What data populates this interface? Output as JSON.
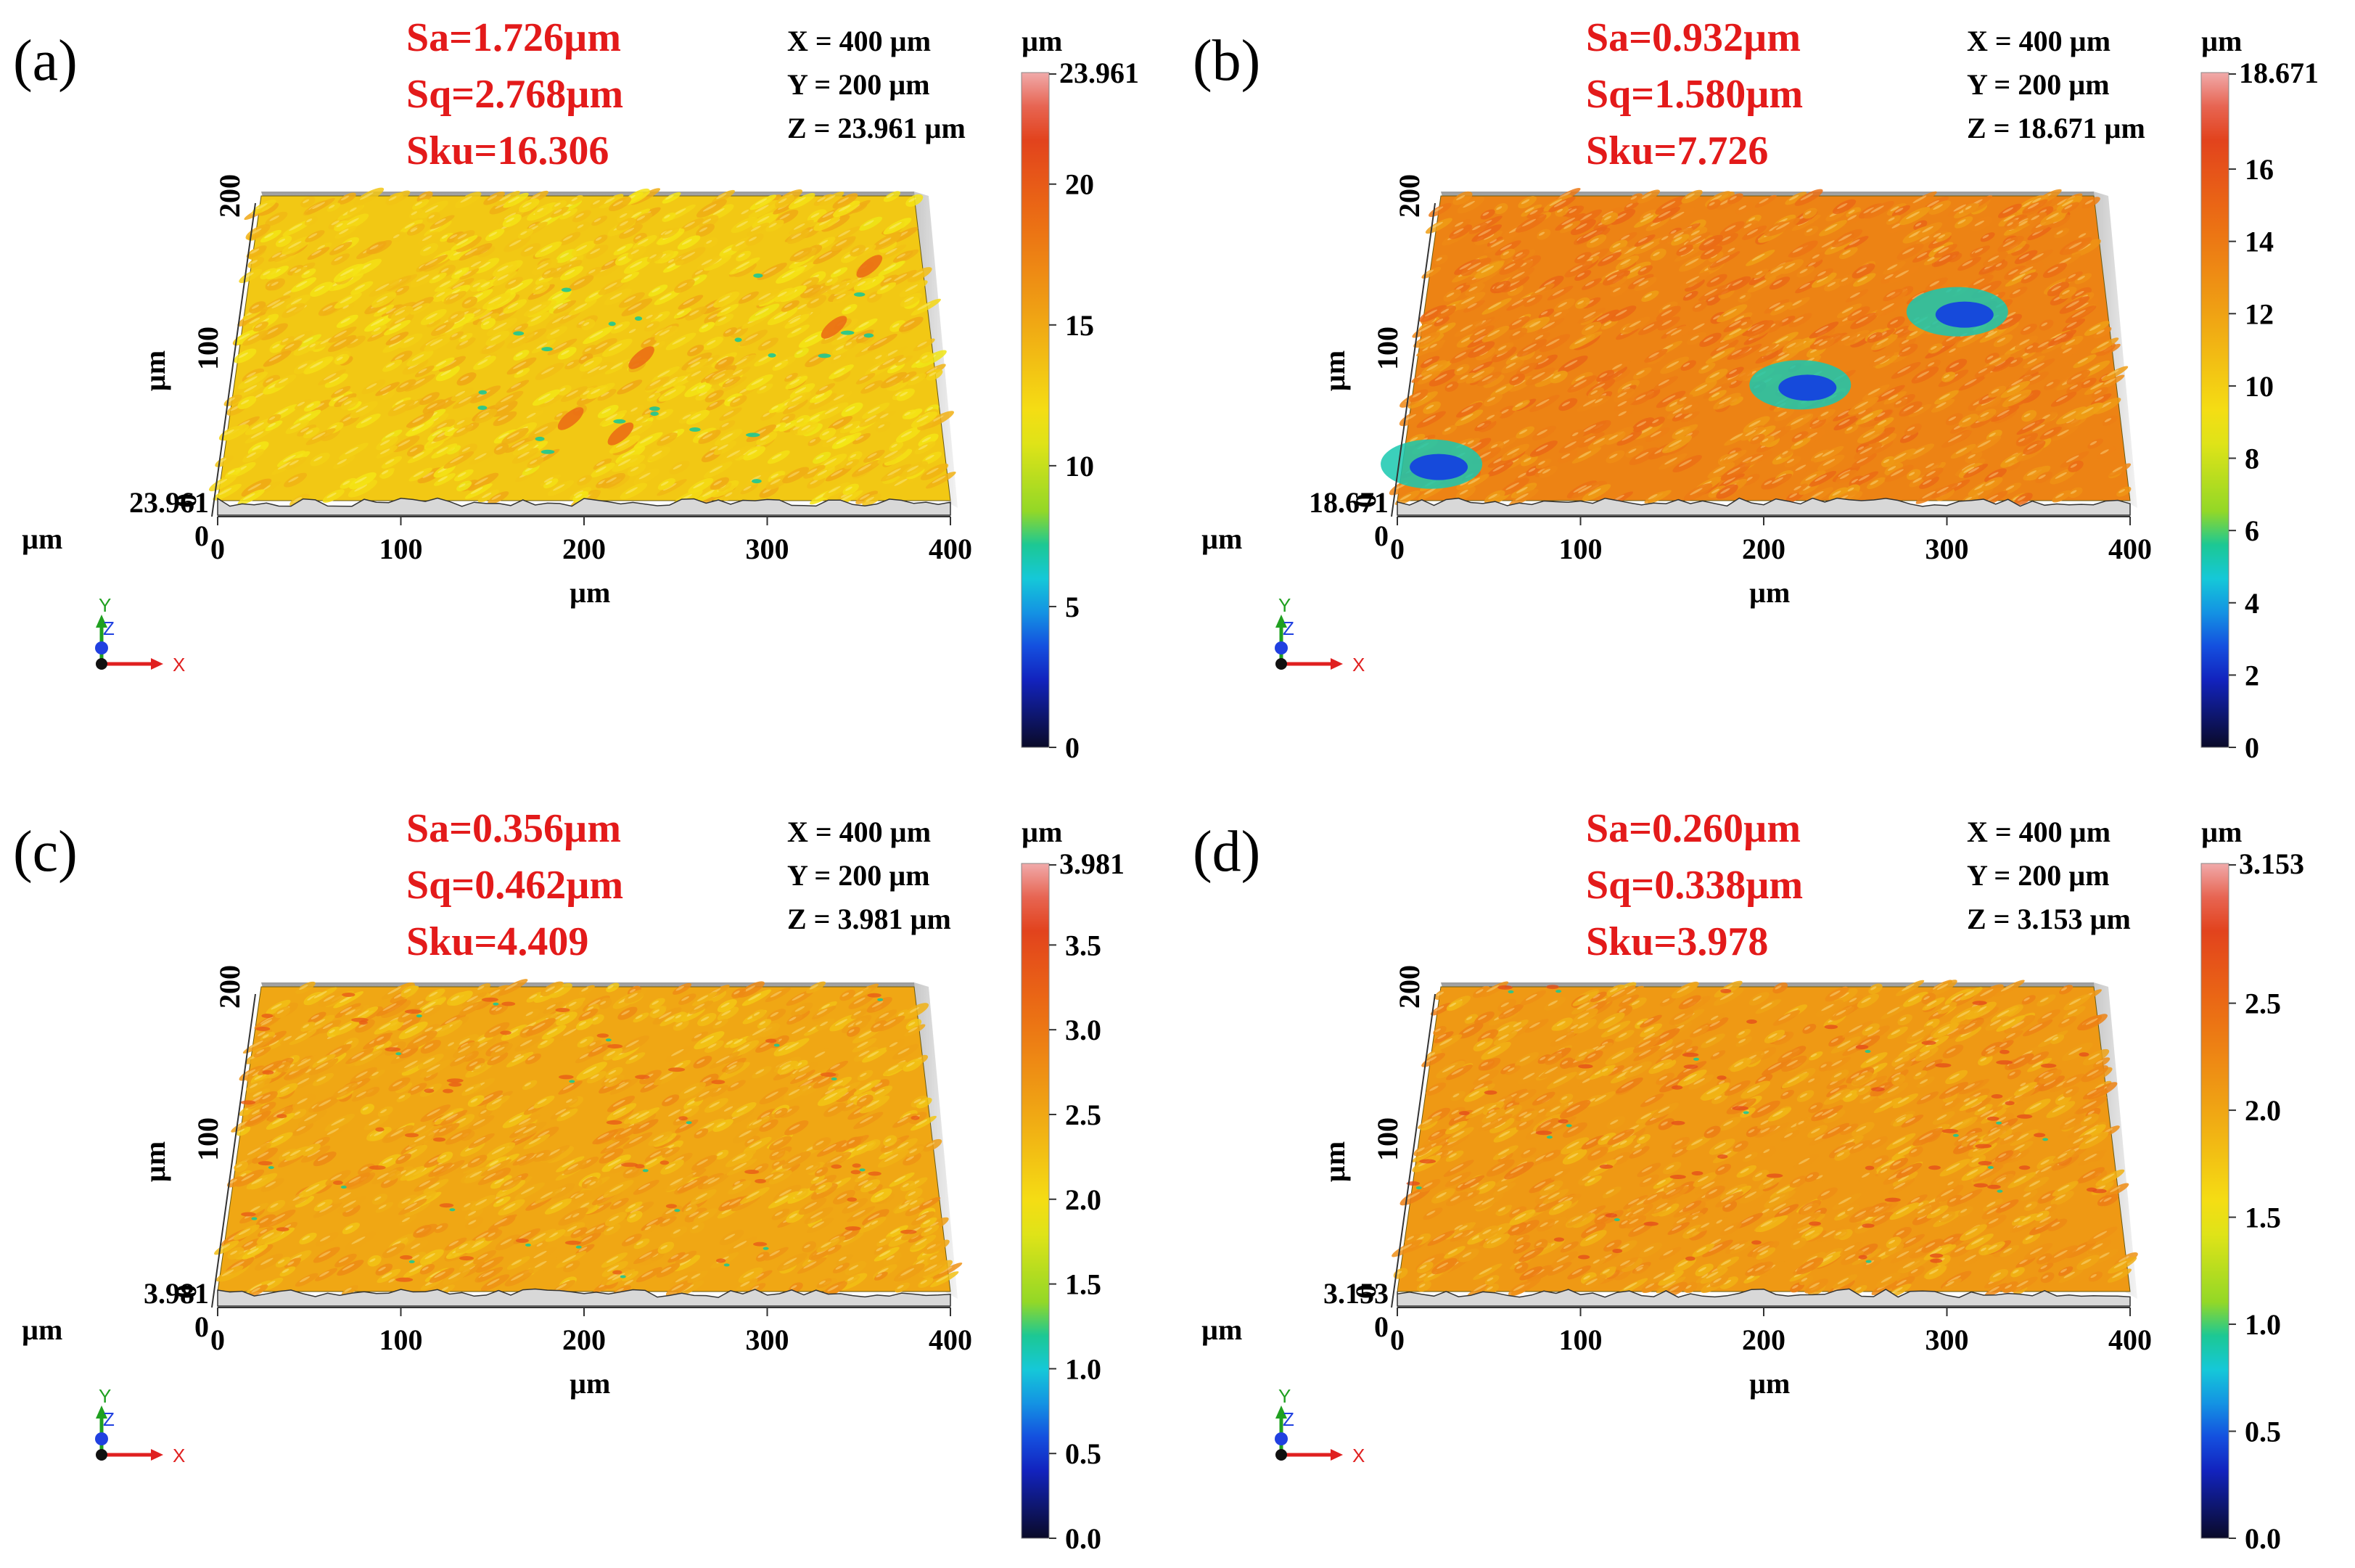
{
  "figure": {
    "unit": "µm",
    "axis_x_label": "X",
    "axis_y_label": "Y",
    "axis_z_label": "Z",
    "colors": {
      "stat_text": "#e31a1a",
      "surface_main": "#e8b820",
      "surface_dark": "#c98e10",
      "surface_orange": "#e07a18",
      "low_cyan": "#18c8c8",
      "low_blue": "#1030d8"
    }
  },
  "chart_data": [
    {
      "type": "heatmap",
      "panel": "(a)",
      "surface": "3D surface topography map",
      "stats": {
        "sa": "Sa=1.726µm",
        "sq": "Sq=2.768µm",
        "sku": "Sku=16.306"
      },
      "dims": {
        "x": "X = 400 µm",
        "y": "Y = 200 µm",
        "z": "Z = 23.961 µm"
      },
      "xlim": [
        0,
        400
      ],
      "ylim": [
        0,
        200
      ],
      "zlim": [
        0,
        23.961
      ],
      "x_ticks": [
        "0",
        "100",
        "200",
        "300",
        "400"
      ],
      "y_ticks": [
        "0",
        "100",
        "200"
      ],
      "z_base_label": "23.961",
      "z_origin_label": "0",
      "colorbar_max_label": "23.961",
      "colorbar_ticks": [
        "0",
        "5",
        "10",
        "15",
        "20"
      ],
      "colorbar_tick_values": [
        0,
        5,
        10,
        15,
        20
      ],
      "dominant_height": 13.2,
      "surface_color": "#e8b820"
    },
    {
      "type": "heatmap",
      "panel": "(b)",
      "surface": "3D surface topography map",
      "stats": {
        "sa": "Sa=0.932µm",
        "sq": "Sq=1.580µm",
        "sku": "Sku=7.726"
      },
      "dims": {
        "x": "X = 400 µm",
        "y": "Y = 200 µm",
        "z": "Z = 18.671 µm"
      },
      "xlim": [
        0,
        400
      ],
      "ylim": [
        0,
        200
      ],
      "zlim": [
        0,
        18.671
      ],
      "x_ticks": [
        "0",
        "100",
        "200",
        "300",
        "400"
      ],
      "y_ticks": [
        "0",
        "100",
        "200"
      ],
      "z_base_label": "18.671",
      "z_origin_label": "0",
      "colorbar_max_label": "18.671",
      "colorbar_ticks": [
        "0",
        "2",
        "4",
        "6",
        "8",
        "10",
        "12",
        "14",
        "16"
      ],
      "colorbar_tick_values": [
        0,
        2,
        4,
        6,
        8,
        10,
        12,
        14,
        16
      ],
      "dominant_height": 13.5,
      "surface_color": "#e08a1a"
    },
    {
      "type": "heatmap",
      "panel": "(c)",
      "surface": "3D surface topography map",
      "stats": {
        "sa": "Sa=0.356µm",
        "sq": "Sq=0.462µm",
        "sku": "Sku=4.409"
      },
      "dims": {
        "x": "X = 400 µm",
        "y": "Y = 200 µm",
        "z": "Z = 3.981 µm"
      },
      "xlim": [
        0,
        400
      ],
      "ylim": [
        0,
        200
      ],
      "zlim": [
        0,
        3.981
      ],
      "x_ticks": [
        "0",
        "100",
        "200",
        "300",
        "400"
      ],
      "y_ticks": [
        "0",
        "100",
        "200"
      ],
      "z_base_label": "3.981",
      "z_origin_label": "0",
      "colorbar_max_label": "3.981",
      "colorbar_ticks": [
        "0.0",
        "0.5",
        "1.0",
        "1.5",
        "2.0",
        "2.5",
        "3.0",
        "3.5"
      ],
      "colorbar_tick_values": [
        0,
        0.5,
        1.0,
        1.5,
        2.0,
        2.5,
        3.0,
        3.5
      ],
      "dominant_height": 2.5,
      "surface_color": "#df9018"
    },
    {
      "type": "heatmap",
      "panel": "(d)",
      "surface": "3D surface topography map",
      "stats": {
        "sa": "Sa=0.260µm",
        "sq": "Sq=0.338µm",
        "sku": "Sku=3.978"
      },
      "dims": {
        "x": "X = 400 µm",
        "y": "Y = 200 µm",
        "z": "Z = 3.153 µm"
      },
      "xlim": [
        0,
        400
      ],
      "ylim": [
        0,
        200
      ],
      "zlim": [
        0,
        3.153
      ],
      "x_ticks": [
        "0",
        "100",
        "200",
        "300",
        "400"
      ],
      "y_ticks": [
        "0",
        "100",
        "200"
      ],
      "z_base_label": "3.153",
      "z_origin_label": "0",
      "colorbar_max_label": "3.153",
      "colorbar_ticks": [
        "0.0",
        "0.5",
        "1.0",
        "1.5",
        "2.0",
        "2.5"
      ],
      "colorbar_tick_values": [
        0,
        0.5,
        1.0,
        1.5,
        2.0,
        2.5
      ],
      "dominant_height": 2.1,
      "surface_color": "#e08416"
    }
  ]
}
